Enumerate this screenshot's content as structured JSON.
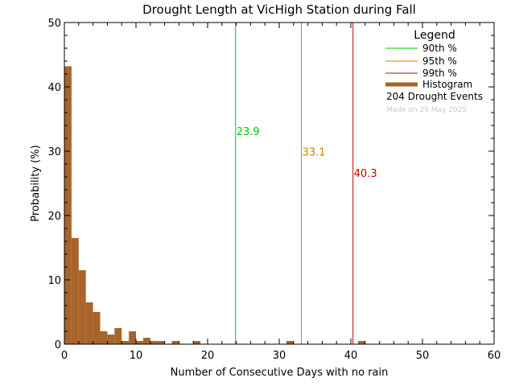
{
  "chart_data": {
    "type": "bar",
    "title": "Drought Length at VicHigh Station during Fall",
    "xlabel": "Number of Consecutive Days with no rain",
    "ylabel": "Probability (%)",
    "xlim": [
      0,
      60
    ],
    "ylim": [
      0,
      50
    ],
    "xticks": [
      0,
      10,
      20,
      30,
      40,
      50,
      60
    ],
    "yticks": [
      0,
      10,
      20,
      30,
      40,
      50
    ],
    "bin_width": 1,
    "histogram": {
      "name": "Histogram",
      "color": "#a8642a",
      "bins": [
        {
          "x": 0,
          "value": 43.2
        },
        {
          "x": 1,
          "value": 16.5
        },
        {
          "x": 2,
          "value": 11.5
        },
        {
          "x": 3,
          "value": 6.5
        },
        {
          "x": 4,
          "value": 5.0
        },
        {
          "x": 5,
          "value": 2.0
        },
        {
          "x": 6,
          "value": 1.5
        },
        {
          "x": 7,
          "value": 2.5
        },
        {
          "x": 8,
          "value": 0.5
        },
        {
          "x": 9,
          "value": 2.0
        },
        {
          "x": 10,
          "value": 0.5
        },
        {
          "x": 11,
          "value": 1.0
        },
        {
          "x": 12,
          "value": 0.5
        },
        {
          "x": 13,
          "value": 0.5
        },
        {
          "x": 15,
          "value": 0.5
        },
        {
          "x": 18,
          "value": 0.5
        },
        {
          "x": 31,
          "value": 0.5
        },
        {
          "x": 41,
          "value": 0.5
        }
      ]
    },
    "percentiles": [
      {
        "name": "90th %",
        "value": 23.9,
        "label": "23.9",
        "color": "#00cc00",
        "label_y": 32.5
      },
      {
        "name": "95th %",
        "value": 33.1,
        "label": "33.1",
        "color": "#cc8400",
        "label_y": 29.3
      },
      {
        "name": "99th %",
        "value": 40.3,
        "label": "40.3",
        "color": "#cc0000",
        "label_y": 26.0
      }
    ],
    "legend": {
      "title": "Legend",
      "placement": "top-right",
      "events_text": "204 Drought Events",
      "made_text": "Made on 29 May 2025"
    }
  }
}
